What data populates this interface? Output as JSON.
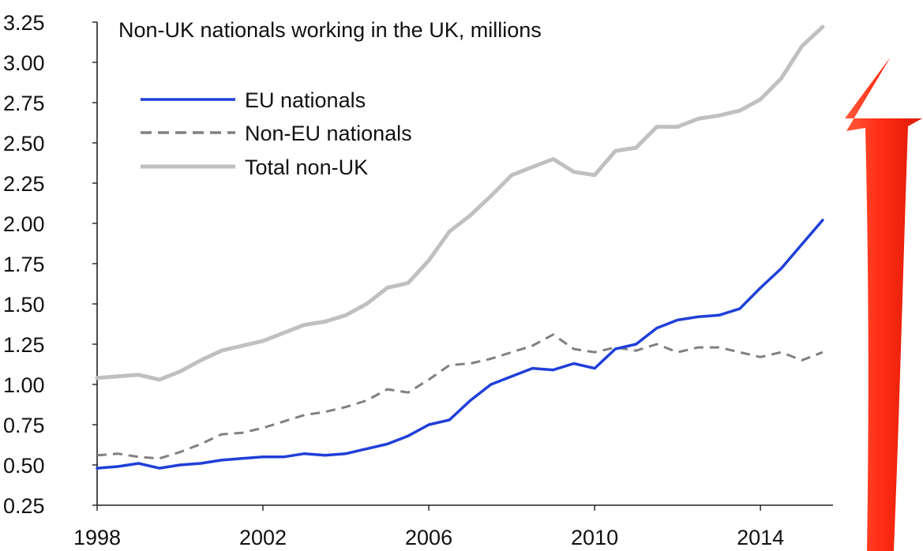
{
  "chart_data": {
    "type": "line",
    "title": "Non-UK nationals working in the UK, millions",
    "xlabel": "",
    "ylabel": "",
    "xlim": [
      1998,
      2015.75
    ],
    "ylim": [
      0.25,
      3.25
    ],
    "y_ticks": [
      "0.25",
      "0.50",
      "0.75",
      "1.00",
      "1.25",
      "1.50",
      "1.75",
      "2.00",
      "2.25",
      "2.50",
      "2.75",
      "3.00",
      "3.25"
    ],
    "x_ticks": [
      "1998",
      "2002",
      "2006",
      "2010",
      "2014"
    ],
    "grid": false,
    "legend_position": "top-left",
    "series": [
      {
        "name": "EU nationals",
        "color": "#1f3fd8",
        "style": "solid",
        "x": [
          1998,
          1998.5,
          1999,
          1999.5,
          2000,
          2000.5,
          2001,
          2001.5,
          2002,
          2002.5,
          2003,
          2003.5,
          2004,
          2004.5,
          2005,
          2005.5,
          2006,
          2006.5,
          2007,
          2007.5,
          2008,
          2008.5,
          2009,
          2009.5,
          2010,
          2010.5,
          2011,
          2011.5,
          2012,
          2012.5,
          2013,
          2013.5,
          2014,
          2014.5,
          2015,
          2015.5
        ],
        "values": [
          0.48,
          0.49,
          0.51,
          0.48,
          0.5,
          0.51,
          0.53,
          0.54,
          0.55,
          0.55,
          0.57,
          0.56,
          0.57,
          0.6,
          0.63,
          0.68,
          0.75,
          0.78,
          0.9,
          1.0,
          1.05,
          1.1,
          1.09,
          1.13,
          1.1,
          1.22,
          1.25,
          1.35,
          1.4,
          1.42,
          1.43,
          1.47,
          1.6,
          1.72,
          1.87,
          2.02
        ]
      },
      {
        "name": "Non-EU nationals",
        "color": "#808080",
        "style": "dashed",
        "x": [
          1998,
          1998.5,
          1999,
          1999.5,
          2000,
          2000.5,
          2001,
          2001.5,
          2002,
          2002.5,
          2003,
          2003.5,
          2004,
          2004.5,
          2005,
          2005.5,
          2006,
          2006.5,
          2007,
          2007.5,
          2008,
          2008.5,
          2009,
          2009.5,
          2010,
          2010.5,
          2011,
          2011.5,
          2012,
          2012.5,
          2013,
          2013.5,
          2014,
          2014.5,
          2015,
          2015.5
        ],
        "values": [
          0.56,
          0.57,
          0.55,
          0.54,
          0.58,
          0.63,
          0.69,
          0.7,
          0.73,
          0.77,
          0.81,
          0.83,
          0.86,
          0.9,
          0.97,
          0.95,
          1.03,
          1.12,
          1.13,
          1.16,
          1.2,
          1.24,
          1.31,
          1.22,
          1.2,
          1.23,
          1.21,
          1.25,
          1.2,
          1.23,
          1.23,
          1.2,
          1.17,
          1.2,
          1.15,
          1.2
        ]
      },
      {
        "name": "Total non-UK",
        "color": "#c0c0c0",
        "style": "solid",
        "x": [
          1998,
          1998.5,
          1999,
          1999.5,
          2000,
          2000.5,
          2001,
          2001.5,
          2002,
          2002.5,
          2003,
          2003.5,
          2004,
          2004.5,
          2005,
          2005.5,
          2006,
          2006.5,
          2007,
          2007.5,
          2008,
          2008.5,
          2009,
          2009.5,
          2010,
          2010.5,
          2011,
          2011.5,
          2012,
          2012.5,
          2013,
          2013.5,
          2014,
          2014.5,
          2015,
          2015.5
        ],
        "values": [
          1.04,
          1.05,
          1.06,
          1.03,
          1.08,
          1.15,
          1.21,
          1.24,
          1.27,
          1.32,
          1.37,
          1.39,
          1.43,
          1.5,
          1.6,
          1.63,
          1.77,
          1.95,
          2.05,
          2.17,
          2.3,
          2.35,
          2.4,
          2.32,
          2.3,
          2.45,
          2.47,
          2.6,
          2.6,
          2.65,
          2.67,
          2.7,
          2.77,
          2.9,
          3.1,
          3.22
        ]
      }
    ]
  },
  "annotation": {
    "arrow_color": "#ff2a12"
  }
}
